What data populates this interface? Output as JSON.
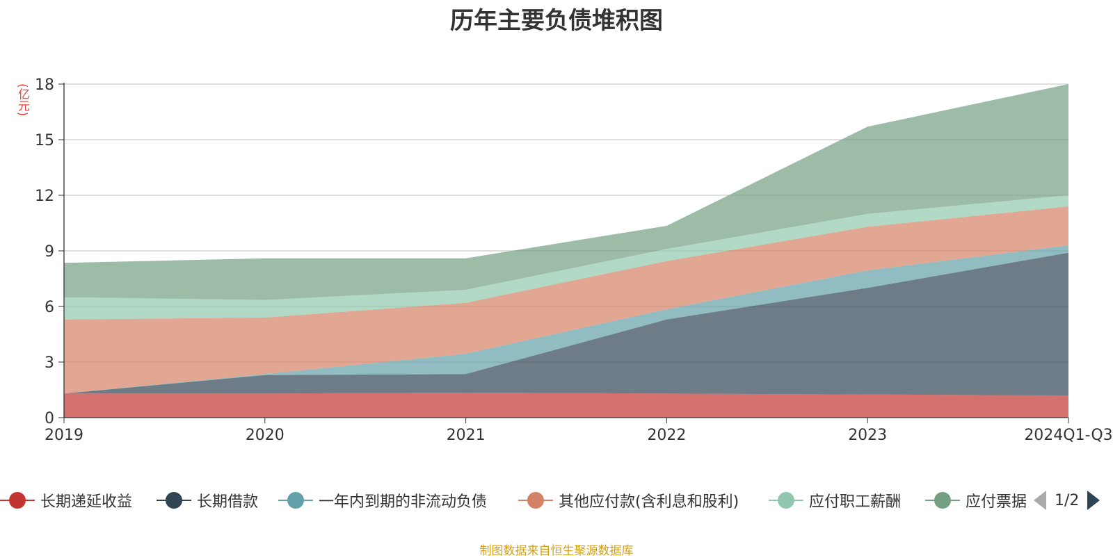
{
  "chart_data": {
    "type": "area",
    "stacked": true,
    "title": "历年主要负债堆积图",
    "unit_label": "(亿元)",
    "categories": [
      "2019",
      "2020",
      "2021",
      "2022",
      "2023",
      "2024Q1-Q3"
    ],
    "ylim": [
      0,
      18
    ],
    "yticks": [
      "0",
      "3",
      "6",
      "9",
      "12",
      "15",
      "18"
    ],
    "grid": true,
    "legend_position": "bottom",
    "series": [
      {
        "name": "长期递延收益",
        "color": "#c23531",
        "values": [
          1.3,
          1.3,
          1.35,
          1.3,
          1.25,
          1.2
        ]
      },
      {
        "name": "长期借款",
        "color": "#2f4554",
        "values": [
          0.0,
          1.0,
          1.0,
          4.0,
          5.75,
          7.7
        ]
      },
      {
        "name": "一年内到期的非流动负债",
        "color": "#61a0a8",
        "values": [
          0.0,
          0.05,
          1.1,
          0.55,
          0.95,
          0.4
        ]
      },
      {
        "name": "其他应付款(含利息和股利)",
        "color": "#d48265",
        "values": [
          4.0,
          3.05,
          2.75,
          2.6,
          2.35,
          2.1
        ]
      },
      {
        "name": "应付职工薪酬",
        "color": "#91c7ae",
        "values": [
          1.2,
          0.95,
          0.7,
          0.65,
          0.7,
          0.6
        ]
      },
      {
        "name": "应付票据",
        "color": "#749f83",
        "values": [
          1.85,
          2.25,
          1.7,
          1.25,
          4.7,
          6.0
        ]
      }
    ]
  },
  "legend": {
    "visible_labels": [
      "长期递延收益",
      "长期借款",
      "一年内到期的非流动负债",
      "其他应付款(含利息和股利)",
      "应付职工薪酬",
      "应付票据"
    ],
    "page_indicator": "1/2"
  },
  "source_note": "制图数据来自恒生聚源数据库"
}
